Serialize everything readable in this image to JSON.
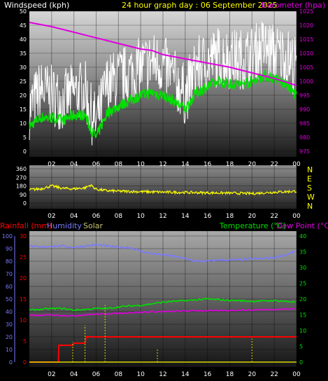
{
  "header": {
    "left_label": "Windspeed (kph)",
    "center_label": "24 hour graph day : 06 September 2025",
    "right_label": "Barometer (hpa)"
  },
  "colors": {
    "wind_gust": "#ffffff",
    "wind_avg": "#00e000",
    "barometer": "#e000e0",
    "wind_dir": "#ffff00",
    "rain": "#ff0000",
    "humidity": "#7a7aff",
    "solar": "#d8d800",
    "temperature": "#00e000",
    "dewpoint": "#e000e0",
    "header_yellow": "#ffff00",
    "axis_text": "#ffffff"
  },
  "chart_data": [
    {
      "type": "line",
      "name": "wind-baro-panel",
      "x_ticks": [
        "02",
        "04",
        "06",
        "08",
        "10",
        "12",
        "14",
        "16",
        "18",
        "20",
        "22",
        "00"
      ],
      "y_left_ticks": [
        0,
        5,
        10,
        15,
        20,
        25,
        30,
        35,
        40,
        45,
        50
      ],
      "y_right_ticks": [
        975,
        980,
        985,
        990,
        995,
        1000,
        1005,
        1010,
        1015,
        1020,
        1025
      ],
      "ylim_left": [
        0,
        50
      ],
      "ylim_right": [
        975,
        1025
      ],
      "series": [
        {
          "name": "Windspeed (kph)",
          "role": "gust",
          "x": [
            0,
            1,
            2,
            3,
            4,
            5,
            5.5,
            6,
            7,
            8,
            9,
            10,
            11,
            12,
            13,
            14,
            15,
            16,
            17,
            18,
            19,
            20,
            21,
            22,
            23,
            24
          ],
          "values": [
            15,
            22,
            20,
            18,
            21,
            22,
            14,
            10,
            24,
            26,
            28,
            30,
            32,
            31,
            26,
            20,
            30,
            32,
            34,
            33,
            33,
            34,
            37,
            35,
            34,
            30
          ]
        },
        {
          "name": "Windspeed avg",
          "role": "avg",
          "x": [
            0,
            1,
            2,
            3,
            4,
            5,
            5.5,
            6,
            7,
            8,
            9,
            10,
            11,
            12,
            13,
            14,
            15,
            16,
            17,
            18,
            19,
            20,
            21,
            22,
            23,
            24
          ],
          "values": [
            9,
            12,
            12,
            11,
            13,
            13,
            8,
            5,
            14,
            16,
            18,
            20,
            21,
            20,
            18,
            15,
            21,
            23,
            25,
            24,
            24,
            25,
            27,
            26,
            24,
            20
          ]
        },
        {
          "name": "Barometer (hpa)",
          "role": "baro",
          "x": [
            0,
            2,
            4,
            6,
            8,
            10,
            11,
            12,
            14,
            16,
            18,
            20,
            22,
            24
          ],
          "values": [
            1021,
            1019.5,
            1017.5,
            1015.5,
            1013.5,
            1011.5,
            1011,
            1009.5,
            1008,
            1006.5,
            1005,
            1003,
            1001,
            998.5
          ]
        }
      ]
    },
    {
      "type": "line",
      "name": "wind-direction-panel",
      "x_ticks": [
        "02",
        "04",
        "06",
        "08",
        "10",
        "12",
        "14",
        "16",
        "18",
        "20",
        "22",
        "00"
      ],
      "y_left_ticks": [
        0,
        90,
        180,
        270,
        360
      ],
      "y_right_ticks": [
        "N",
        "E",
        "S",
        "W",
        "N"
      ],
      "ylim": [
        0,
        360
      ],
      "series": [
        {
          "name": "Wind direction",
          "x": [
            0,
            1,
            2,
            3,
            4,
            5,
            5.5,
            6,
            7,
            8,
            10,
            12,
            14,
            16,
            18,
            20,
            22,
            24
          ],
          "values": [
            140,
            150,
            180,
            155,
            150,
            160,
            190,
            145,
            130,
            125,
            120,
            115,
            112,
            108,
            105,
            100,
            115,
            125
          ]
        }
      ]
    },
    {
      "type": "line",
      "name": "rain-humidity-temp-panel",
      "x_ticks": [
        "02",
        "04",
        "06",
        "08",
        "10",
        "12",
        "14",
        "16",
        "18",
        "20",
        "22",
        "00"
      ],
      "y_humidity_ticks": [
        0,
        10,
        20,
        30,
        40,
        50,
        60,
        70,
        80,
        90,
        100
      ],
      "y_rain_ticks": [
        0,
        5,
        10,
        15,
        20,
        25,
        30
      ],
      "y_temp_ticks": [
        0,
        5,
        10,
        15,
        20,
        25,
        30,
        35,
        40
      ],
      "ylim_humidity": [
        0,
        100
      ],
      "ylim_rain": [
        0,
        30
      ],
      "ylim_temp": [
        0,
        40
      ],
      "labels": {
        "rain": "Rainfall (mm)",
        "humidity": "Humidity",
        "solar": "Solar",
        "temperature": "Temperature (°C)",
        "dewpoint": "Dew Point (°C)"
      },
      "series": [
        {
          "name": "Humidity",
          "axis": "humidity",
          "x": [
            0,
            1,
            2,
            3,
            4,
            5,
            6,
            7,
            8,
            9,
            10,
            11,
            12,
            13,
            14,
            15,
            16,
            17,
            18,
            19,
            20,
            21,
            22,
            23,
            24
          ],
          "values": [
            92,
            91,
            92,
            92,
            91,
            92,
            93,
            92,
            91,
            91,
            88,
            86,
            85,
            84,
            82,
            80,
            80,
            81,
            81,
            81,
            82,
            82,
            83,
            85,
            88
          ]
        },
        {
          "name": "Temperature (°C)",
          "axis": "temp",
          "x": [
            0,
            1,
            2,
            3,
            4,
            5,
            6,
            7,
            8,
            9,
            10,
            11,
            12,
            13,
            14,
            15,
            16,
            17,
            18,
            19,
            20,
            21,
            22,
            23,
            24
          ],
          "values": [
            16.5,
            16.7,
            17,
            17,
            16.5,
            16.7,
            17,
            17,
            17.5,
            17.8,
            18,
            18.5,
            19,
            19.3,
            19.5,
            19.8,
            20,
            19.8,
            19.6,
            19.5,
            19.3,
            19.4,
            19.5,
            19.3,
            19
          ]
        },
        {
          "name": "Dew Point (°C)",
          "axis": "temp",
          "x": [
            0,
            1,
            2,
            3,
            4,
            5,
            6,
            7,
            8,
            9,
            10,
            11,
            12,
            13,
            14,
            15,
            16,
            17,
            18,
            19,
            20,
            21,
            22,
            23,
            24
          ],
          "values": [
            14.8,
            14.8,
            15,
            14.8,
            14.7,
            15,
            15.2,
            15.3,
            15.5,
            15.7,
            15.8,
            16,
            16,
            16.1,
            16.2,
            16.3,
            16.3,
            16.3,
            16.4,
            16.5,
            16.5,
            16.6,
            16.7,
            16.8,
            16.9
          ]
        },
        {
          "name": "Rainfall (mm)",
          "axis": "rain",
          "x": [
            0,
            2.6,
            2.65,
            3.9,
            4.0,
            5.0,
            5.1,
            24
          ],
          "values": [
            0,
            0,
            4,
            4,
            4.5,
            4.5,
            6,
            6
          ]
        },
        {
          "name": "Solar",
          "axis": "solar_bars",
          "x": [
            3.9,
            5.0,
            6.8,
            11.5,
            20.0
          ],
          "values": [
            1.2,
            2.2,
            3.4,
            0.8,
            1.4
          ]
        }
      ]
    }
  ]
}
